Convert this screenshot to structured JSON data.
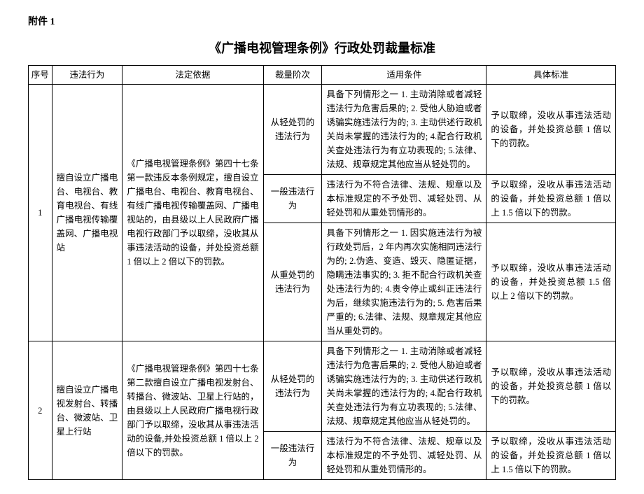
{
  "attachment_label": "附件 1",
  "title": "《广播电视管理条例》行政处罚裁量标准",
  "columns": {
    "seq": "序号",
    "act": "违法行为",
    "basis": "法定依据",
    "level": "裁量阶次",
    "cond": "适用条件",
    "std": "具体标准"
  },
  "groups": [
    {
      "seq": "1",
      "act": "擅自设立广播电台、电视台、教育电视台、有线广播电视传输覆盖网、广播电视站",
      "basis": "《广播电视管理条例》第四十七条第一款违反本条例规定，擅自设立广播电台、电视台、教育电视台、有线广播电视传输覆盖网、广播电视站的，由县级以上人民政府广播电视行政部门予以取缔，没收其从事违法活动的设备，并处投资总额 1 倍以上 2 倍以下的罚款。",
      "rows": [
        {
          "level": "从轻处罚的违法行为",
          "cond": "具备下列情形之一 1. 主动消除或者减轻违法行为危害后果的; 2. 受他人胁迫或者诱骗实施违法行为的; 3. 主动供述行政机关尚未掌握的违法行为的; 4.配合行政机关查处违法行为有立功表现的; 5.法律、法规、规章规定其他应当从轻处罚的。",
          "std": "予以取缔，没收从事违法活动的设备，并处投资总额 1 倍以下的罚款。"
        },
        {
          "level": "一般违法行为",
          "cond": "违法行为不符合法律、法规、规章以及本标准规定的不予处罚、减轻处罚、从轻处罚和从重处罚情形的。",
          "std": "予以取缔，没收从事违法活动的设备，并处投资总额 1 倍以上 1.5 倍以下的罚款。"
        },
        {
          "level": "从重处罚的违法行为",
          "cond": "具备下列情形之一 1. 因实施违法行为被行政处罚后，2 年内再次实施相同违法行为的; 2.伪造、变造、毁灭、隐匿证据，隐瞒违法事实的; 3. 拒不配合行政机关查处违法行为的; 4.责令停止或纠正违法行为后，继续实施违法行为的; 5. 危害后果严重的; 6.法律、法规、规章规定其他应当从重处罚的。",
          "std": "予以取缔，没收从事违法活动的设备，并处投资总额 1.5 倍以上 2 倍以下的罚款。"
        }
      ]
    },
    {
      "seq": "2",
      "act": "擅自设立广播电视发射台、转播台、微波站、卫星上行站",
      "basis": "《广播电视管理条例》第四十七条第二款擅自设立广播电视发射台、转播台、微波站、卫星上行站的，由县级以上人民政府广播电视行政部门予以取缔，没收其从事违法活动的设备,并处投资总额 1 倍以上 2 倍以下的罚款。",
      "rows": [
        {
          "level": "从轻处罚的违法行为",
          "cond": "具备下列情形之一 1. 主动消除或者减轻违法行为危害后果的; 2. 受他人胁迫或者诱骗实施违法行为的; 3. 主动供述行政机关尚未掌握的违法行为的; 4.配合行政机关查处违法行为有立功表现的; 5.法律、法规、规章规定其他应当从轻处罚的。",
          "std": "予以取缔，没收从事违法活动的设备，并处投资总额 1 倍以下的罚款。"
        },
        {
          "level": "一般违法行为",
          "cond": "违法行为不符合法律、法规、规章以及本标准规定的不予处罚、减轻处罚、从轻处罚和从重处罚情形的。",
          "std": "予以取缔，没收从事违法活动的设备，并处投资总额 1 倍以上 1.5 倍以下的罚款。"
        }
      ]
    }
  ]
}
